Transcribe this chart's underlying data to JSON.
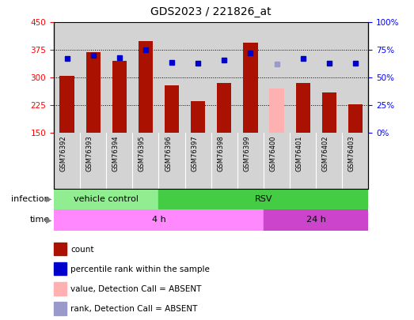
{
  "title": "GDS2023 / 221826_at",
  "samples": [
    "GSM76392",
    "GSM76393",
    "GSM76394",
    "GSM76395",
    "GSM76396",
    "GSM76397",
    "GSM76398",
    "GSM76399",
    "GSM76400",
    "GSM76401",
    "GSM76402",
    "GSM76403"
  ],
  "counts": [
    305,
    370,
    345,
    400,
    280,
    235,
    285,
    395,
    270,
    285,
    260,
    228
  ],
  "counts_absent": [
    false,
    false,
    false,
    false,
    false,
    false,
    false,
    false,
    true,
    false,
    false,
    false
  ],
  "ranks": [
    67,
    70,
    68,
    75,
    64,
    63,
    66,
    72,
    62,
    67,
    63,
    63
  ],
  "ranks_absent": [
    false,
    false,
    false,
    false,
    false,
    false,
    false,
    false,
    true,
    false,
    false,
    false
  ],
  "infection_groups": [
    {
      "label": "vehicle control",
      "start": 0,
      "end": 4,
      "color": "#90ee90"
    },
    {
      "label": "RSV",
      "start": 4,
      "end": 12,
      "color": "#44cc44"
    }
  ],
  "time_groups": [
    {
      "label": "4 h",
      "start": 0,
      "end": 8,
      "color": "#ff88ff"
    },
    {
      "label": "24 h",
      "start": 8,
      "end": 12,
      "color": "#cc44cc"
    }
  ],
  "ylim_left": [
    150,
    450
  ],
  "ylim_right": [
    0,
    100
  ],
  "yticks_left": [
    150,
    225,
    300,
    375,
    450
  ],
  "yticks_right": [
    0,
    25,
    50,
    75,
    100
  ],
  "ytick_labels_right": [
    "0%",
    "25%",
    "50%",
    "75%",
    "100%"
  ],
  "bar_color": "#aa1100",
  "bar_absent_color": "#ffb0b0",
  "rank_color": "#0000cc",
  "rank_absent_color": "#9999cc",
  "grid_yticks": [
    225,
    300,
    375
  ],
  "plot_bg_color": "#d3d3d3",
  "label_bg_color": "#d3d3d3",
  "legend_items": [
    {
      "color": "#aa1100",
      "label": "count"
    },
    {
      "color": "#0000cc",
      "label": "percentile rank within the sample"
    },
    {
      "color": "#ffb0b0",
      "label": "value, Detection Call = ABSENT"
    },
    {
      "color": "#9999cc",
      "label": "rank, Detection Call = ABSENT"
    }
  ]
}
